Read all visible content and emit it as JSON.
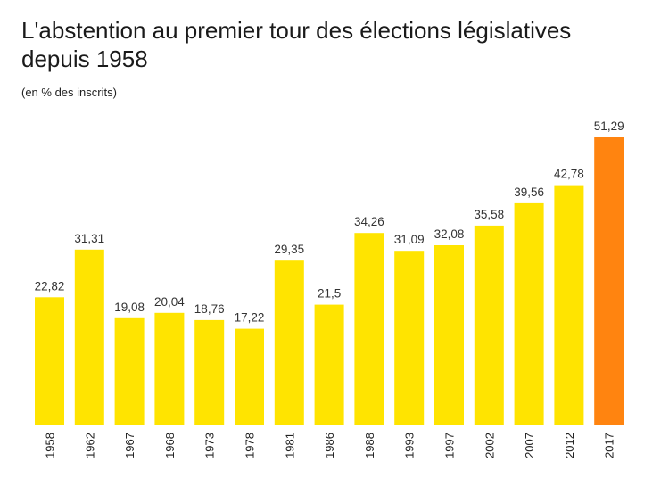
{
  "chart_data": {
    "type": "bar",
    "title": "L'abstention au premier tour des élections législatives depuis 1958",
    "subtitle": "(en % des inscrits)",
    "categories": [
      "1958",
      "1962",
      "1967",
      "1968",
      "1973",
      "1978",
      "1981",
      "1986",
      "1988",
      "1993",
      "1997",
      "2002",
      "2007",
      "2012",
      "2017"
    ],
    "values": [
      22.82,
      31.31,
      19.08,
      20.04,
      18.76,
      17.22,
      29.35,
      21.5,
      34.26,
      31.09,
      32.08,
      35.58,
      39.56,
      42.78,
      51.29
    ],
    "value_labels": [
      "22,82",
      "31,31",
      "19,08",
      "20,04",
      "18,76",
      "17,22",
      "29,35",
      "21,5",
      "34,26",
      "31,09",
      "32,08",
      "35,58",
      "39,56",
      "42,78",
      "51,29"
    ],
    "ylim": [
      0,
      51.29
    ],
    "grid": false,
    "legend": "none",
    "colors": {
      "default": "#FFE400",
      "highlight": "#FF8410"
    },
    "highlight_category": "2017"
  }
}
